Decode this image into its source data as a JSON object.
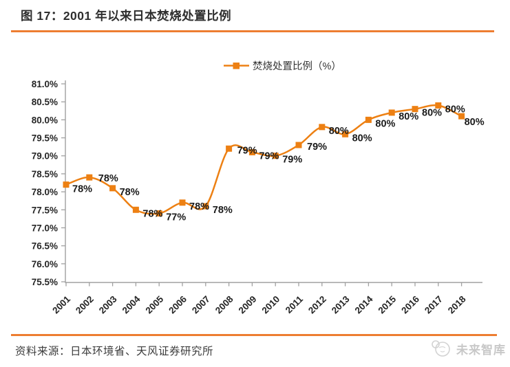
{
  "header": {
    "title": "图 17：2001 年以来日本焚烧处置比例"
  },
  "footer": {
    "source": "资料来源：日本环境省、天风证券研究所",
    "brand": "未来智库"
  },
  "colors": {
    "series_orange": "#ED8013",
    "rule_orange": "#ED7D31",
    "axis_gray": "#A0A0A0",
    "tick_text": "#262626",
    "brand_gray": "#C8C8C8"
  },
  "chart_data": {
    "type": "line",
    "smooth": true,
    "grid": false,
    "legend_position": "top",
    "title": "图 17：2001 年以来日本焚烧处置比例",
    "xlabel": "",
    "ylabel": "",
    "ylim": [
      75.5,
      81.0
    ],
    "ytick_step": 0.5,
    "yticks": [
      "75.5%",
      "76.0%",
      "76.5%",
      "77.0%",
      "77.5%",
      "78.0%",
      "78.5%",
      "79.0%",
      "79.5%",
      "80.0%",
      "80.5%",
      "81.0%"
    ],
    "categories": [
      "2001",
      "2002",
      "2003",
      "2004",
      "2005",
      "2006",
      "2007",
      "2008",
      "2009",
      "2010",
      "2011",
      "2012",
      "2013",
      "2014",
      "2015",
      "2016",
      "2017",
      "2018"
    ],
    "series": [
      {
        "name": "焚烧处置比例（%）",
        "color": "#ED8013",
        "marker": "square",
        "values": [
          78.2,
          78.4,
          78.1,
          77.5,
          77.4,
          77.7,
          77.6,
          79.2,
          79.1,
          79.0,
          79.3,
          79.8,
          79.6,
          80.0,
          80.2,
          80.3,
          80.4,
          80.1
        ],
        "point_labels": [
          "78%",
          "78%",
          "78%",
          "78%",
          "77%",
          "78%",
          "78%",
          "79%",
          "79%",
          "79%",
          "79%",
          "80%",
          "80%",
          "80%",
          "80%",
          "80%",
          "80%",
          "80%"
        ]
      }
    ]
  }
}
